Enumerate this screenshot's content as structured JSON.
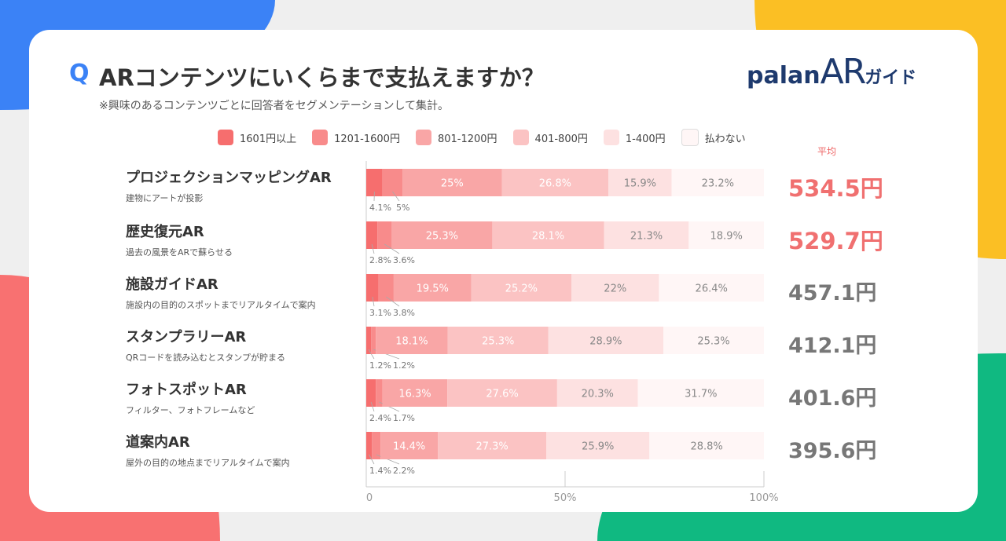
{
  "header": {
    "q": "Q",
    "title": "ARコンテンツにいくらまで支払えますか？",
    "subtitle": "※興味のあるコンテンツごとに回答者をセグメンテーションして集計。",
    "logo_text": "palan",
    "logo_ar": "AR",
    "logo_guide": "ガイド"
  },
  "colors": [
    "#f66e6e",
    "#f88b8b",
    "#f9a6a6",
    "#fbc3c3",
    "#fde1e1",
    "#fff6f6"
  ],
  "chart_data": {
    "type": "bar",
    "stacked": true,
    "orientation": "horizontal",
    "title": "ARコンテンツにいくらまで支払えますか？",
    "legend": [
      "1601円以上",
      "1201-1600円",
      "801-1200円",
      "401-800円",
      "1-400円",
      "払わない"
    ],
    "legend_placement": "top",
    "xlim": [
      0,
      100
    ],
    "xticks": [
      "0",
      "50%",
      "100%"
    ],
    "avg_label": "平均",
    "categories": [
      {
        "name": "プロジェクションマッピングAR",
        "desc": "建物にアートが投影",
        "values": [
          4.1,
          5,
          25,
          26.8,
          15.9,
          23.2
        ],
        "labels": [
          "4.1%",
          "5%",
          "25%",
          "26.8%",
          "15.9%",
          "23.2%"
        ],
        "avg": "534.5円",
        "highlight": true
      },
      {
        "name": "歴史復元AR",
        "desc": "過去の風景をARで蘇らせる",
        "values": [
          2.8,
          3.6,
          25.3,
          28.1,
          21.3,
          18.9
        ],
        "labels": [
          "2.8%",
          "3.6%",
          "25.3%",
          "28.1%",
          "21.3%",
          "18.9%"
        ],
        "avg": "529.7円",
        "highlight": true
      },
      {
        "name": "施設ガイドAR",
        "desc": "施設内の目的のスポットまでリアルタイムで案内",
        "values": [
          3.1,
          3.8,
          19.5,
          25.2,
          22,
          26.4
        ],
        "labels": [
          "3.1%",
          "3.8%",
          "19.5%",
          "25.2%",
          "22%",
          "26.4%"
        ],
        "avg": "457.1円",
        "highlight": false
      },
      {
        "name": "スタンプラリーAR",
        "desc": "QRコードを読み込むとスタンプが貯まる",
        "values": [
          1.2,
          1.2,
          18.1,
          25.3,
          28.9,
          25.3
        ],
        "labels": [
          "1.2%",
          "1.2%",
          "18.1%",
          "25.3%",
          "28.9%",
          "25.3%"
        ],
        "avg": "412.1円",
        "highlight": false
      },
      {
        "name": "フォトスポットAR",
        "desc": "フィルター、フォトフレームなど",
        "values": [
          2.4,
          1.7,
          16.3,
          27.6,
          20.3,
          31.7
        ],
        "labels": [
          "2.4%",
          "1.7%",
          "16.3%",
          "27.6%",
          "20.3%",
          "31.7%"
        ],
        "avg": "401.6円",
        "highlight": false
      },
      {
        "name": "道案内AR",
        "desc": "屋外の目的の地点までリアルタイムで案内",
        "values": [
          1.4,
          2.2,
          14.4,
          27.3,
          25.9,
          28.8
        ],
        "labels": [
          "1.4%",
          "2.2%",
          "14.4%",
          "27.3%",
          "25.9%",
          "28.8%"
        ],
        "avg": "395.6円",
        "highlight": false
      }
    ]
  }
}
